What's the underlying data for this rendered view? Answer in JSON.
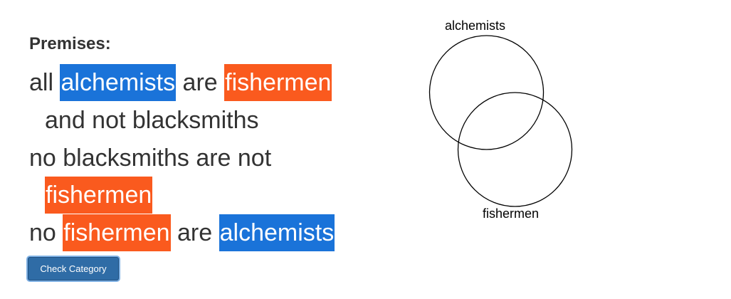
{
  "premises": {
    "heading": "Premises:",
    "line1": {
      "w1": "all",
      "term1": "alchemists",
      "w2": "are",
      "term2": "fishermen"
    },
    "line2": {
      "w1": "and not blacksmiths"
    },
    "line3": {
      "w1": "no blacksmiths are not"
    },
    "line4": {
      "term1": "fishermen"
    },
    "line5": {
      "w1": "no",
      "term1": "fishermen",
      "w2": "are",
      "term2": "alchemists"
    }
  },
  "button": {
    "label": "Check Category"
  },
  "venn": {
    "top_label": "alchemists",
    "bottom_label": "fishermen"
  },
  "colors": {
    "term_blue": "#1a73d9",
    "term_orange": "#fa5a1e",
    "button_bg": "#2f6ca6"
  }
}
